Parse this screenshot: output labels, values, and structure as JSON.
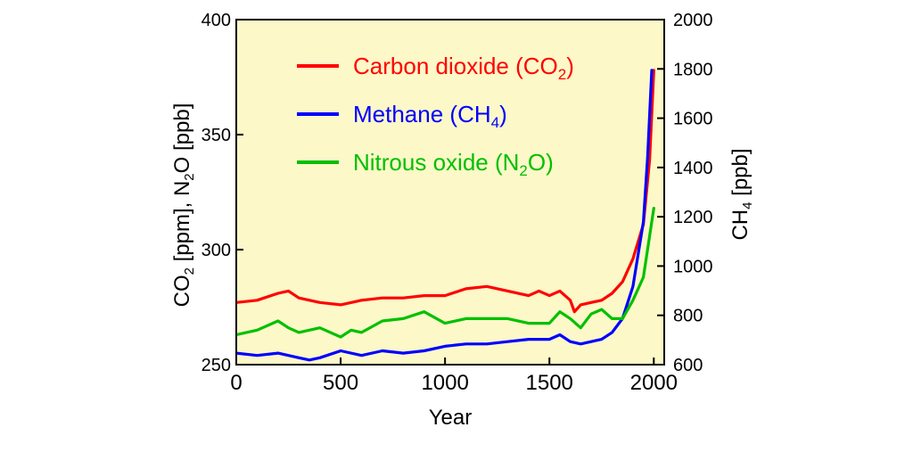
{
  "chart_data": {
    "type": "line",
    "title": "",
    "xlabel": "Year",
    "ylabel_left": "CO2 [ppm], N2O [ppb]",
    "ylabel_right": "CH4 [ppb]",
    "xlim": [
      0,
      2050
    ],
    "ylim_left": [
      250,
      400
    ],
    "ylim_right": [
      600,
      2000
    ],
    "x_ticks": [
      "0",
      "500",
      "1000",
      "1500",
      "2000"
    ],
    "y_ticks_left": [
      "250",
      "300",
      "350",
      "400"
    ],
    "y_ticks_right": [
      "600",
      "800",
      "1000",
      "1200",
      "1400",
      "1600",
      "1800",
      "2000"
    ],
    "grid": false,
    "background": "#fcf8c8",
    "legend_position": "top-left",
    "series": [
      {
        "name": "Carbon dioxide (CO2)",
        "color": "#ff0000",
        "axis": "left",
        "x": [
          0,
          100,
          200,
          250,
          300,
          400,
          500,
          600,
          700,
          800,
          900,
          1000,
          1100,
          1200,
          1300,
          1400,
          1450,
          1500,
          1550,
          1600,
          1620,
          1650,
          1700,
          1750,
          1800,
          1850,
          1900,
          1950,
          1980,
          2000
        ],
        "y": [
          277,
          278,
          281,
          282,
          279,
          277,
          276,
          278,
          279,
          279,
          280,
          280,
          283,
          284,
          282,
          280,
          282,
          280,
          282,
          278,
          273,
          276,
          277,
          278,
          281,
          286,
          296,
          311,
          339,
          378
        ]
      },
      {
        "name": "Methane (CH4)",
        "color": "#0000ff",
        "axis": "left",
        "x": [
          0,
          100,
          200,
          300,
          350,
          400,
          500,
          600,
          700,
          800,
          900,
          1000,
          1100,
          1200,
          1300,
          1400,
          1500,
          1550,
          1600,
          1650,
          1700,
          1750,
          1800,
          1850,
          1900,
          1950,
          1970,
          1990
        ],
        "y": [
          255,
          254,
          255,
          253,
          252,
          253,
          256,
          254,
          256,
          255,
          256,
          258,
          259,
          259,
          260,
          261,
          261,
          263,
          260,
          259,
          260,
          261,
          264,
          270,
          284,
          312,
          340,
          378
        ]
      },
      {
        "name": "Nitrous oxide (N2O)",
        "color": "#00c000",
        "axis": "left",
        "x": [
          0,
          100,
          200,
          250,
          300,
          400,
          500,
          550,
          600,
          700,
          800,
          900,
          1000,
          1100,
          1200,
          1300,
          1400,
          1500,
          1550,
          1600,
          1650,
          1700,
          1750,
          1800,
          1850,
          1900,
          1950,
          2000
        ],
        "y": [
          263,
          265,
          269,
          266,
          264,
          266,
          262,
          265,
          264,
          269,
          270,
          273,
          268,
          270,
          270,
          270,
          268,
          268,
          273,
          270,
          266,
          272,
          274,
          270,
          270,
          278,
          288,
          318
        ]
      }
    ]
  }
}
